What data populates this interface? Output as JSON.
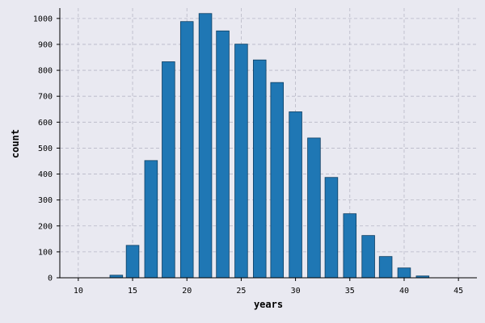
{
  "chart_data": {
    "type": "bar",
    "title": "",
    "xlabel": "years",
    "ylabel": "count",
    "xlim": [
      8.3,
      46.7
    ],
    "ylim": [
      0,
      1040
    ],
    "xticks": [
      10,
      15,
      20,
      25,
      30,
      35,
      40,
      45
    ],
    "yticks": [
      0,
      100,
      200,
      300,
      400,
      500,
      600,
      700,
      800,
      900,
      1000
    ],
    "grid": true,
    "bar_color": "#1f77b4",
    "bar_width": 1.17,
    "x": [
      13.5,
      15.0,
      16.7,
      18.3,
      20.0,
      21.7,
      23.3,
      25.0,
      26.7,
      28.3,
      30.0,
      31.7,
      33.3,
      35.0,
      36.7,
      38.3,
      40.0,
      41.7
    ],
    "values": [
      10,
      125,
      452,
      833,
      988,
      1019,
      952,
      901,
      840,
      753,
      640,
      539,
      387,
      247,
      163,
      82,
      38,
      7
    ]
  }
}
